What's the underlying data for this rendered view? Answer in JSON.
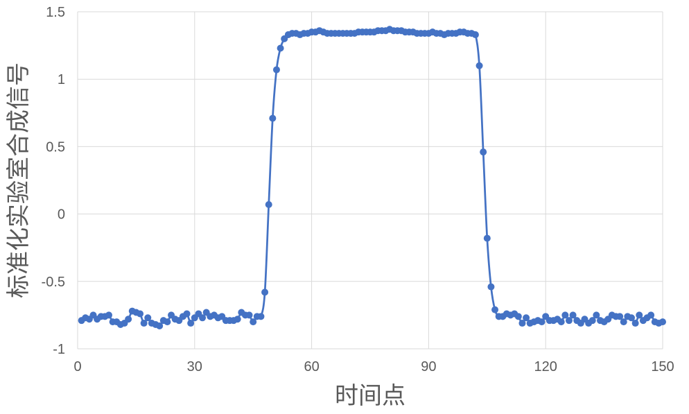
{
  "chart_data": {
    "type": "line",
    "title": "",
    "xlabel": "时间点",
    "ylabel": "标准化实验室合成信号",
    "xlim": [
      0,
      150
    ],
    "ylim": [
      -1,
      1.5
    ],
    "x_ticks": [
      "0",
      "30",
      "60",
      "90",
      "120",
      "150"
    ],
    "y_ticks": [
      "-1",
      "-0.5",
      "0",
      "0.5",
      "1",
      "1.5"
    ],
    "grid": "on",
    "legend": "none",
    "series": [
      {
        "color": "#4472c4",
        "markers": "circle",
        "smooth": true,
        "x": [
          1,
          2,
          3,
          4,
          5,
          6,
          7,
          8,
          9,
          10,
          11,
          12,
          13,
          14,
          15,
          16,
          17,
          18,
          19,
          20,
          21,
          22,
          23,
          24,
          25,
          26,
          27,
          28,
          29,
          30,
          31,
          32,
          33,
          34,
          35,
          36,
          37,
          38,
          39,
          40,
          41,
          42,
          43,
          44,
          45,
          46,
          47,
          48,
          49,
          50,
          51,
          52,
          53,
          54,
          55,
          56,
          57,
          58,
          59,
          60,
          61,
          62,
          63,
          64,
          65,
          66,
          67,
          68,
          69,
          70,
          71,
          72,
          73,
          74,
          75,
          76,
          77,
          78,
          79,
          80,
          81,
          82,
          83,
          84,
          85,
          86,
          87,
          88,
          89,
          90,
          91,
          92,
          93,
          94,
          95,
          96,
          97,
          98,
          99,
          100,
          101,
          102,
          103,
          104,
          105,
          106,
          107,
          108,
          109,
          110,
          111,
          112,
          113,
          114,
          115,
          116,
          117,
          118,
          119,
          120,
          121,
          122,
          123,
          124,
          125,
          126,
          127,
          128,
          129,
          130,
          131,
          132,
          133,
          134,
          135,
          136,
          137,
          138,
          139,
          140,
          141,
          142,
          143,
          144,
          145,
          146,
          147,
          148,
          149,
          150
        ],
        "y": [
          -0.79,
          -0.77,
          -0.78,
          -0.75,
          -0.78,
          -0.76,
          -0.76,
          -0.75,
          -0.8,
          -0.8,
          -0.82,
          -0.81,
          -0.78,
          -0.72,
          -0.73,
          -0.74,
          -0.81,
          -0.77,
          -0.81,
          -0.82,
          -0.83,
          -0.79,
          -0.8,
          -0.75,
          -0.78,
          -0.79,
          -0.76,
          -0.74,
          -0.81,
          -0.77,
          -0.74,
          -0.77,
          -0.73,
          -0.76,
          -0.75,
          -0.77,
          -0.76,
          -0.79,
          -0.79,
          -0.79,
          -0.78,
          -0.73,
          -0.75,
          -0.75,
          -0.8,
          -0.76,
          -0.76,
          -0.58,
          0.07,
          0.71,
          1.07,
          1.23,
          1.3,
          1.33,
          1.34,
          1.34,
          1.33,
          1.34,
          1.34,
          1.35,
          1.35,
          1.36,
          1.35,
          1.34,
          1.34,
          1.34,
          1.34,
          1.34,
          1.34,
          1.34,
          1.34,
          1.35,
          1.35,
          1.35,
          1.35,
          1.35,
          1.36,
          1.36,
          1.36,
          1.37,
          1.36,
          1.36,
          1.36,
          1.35,
          1.35,
          1.35,
          1.34,
          1.34,
          1.34,
          1.34,
          1.35,
          1.34,
          1.34,
          1.33,
          1.34,
          1.34,
          1.34,
          1.35,
          1.35,
          1.34,
          1.34,
          1.33,
          1.1,
          0.46,
          -0.18,
          -0.54,
          -0.71,
          -0.76,
          -0.76,
          -0.74,
          -0.75,
          -0.74,
          -0.76,
          -0.81,
          -0.77,
          -0.81,
          -0.8,
          -0.79,
          -0.8,
          -0.76,
          -0.79,
          -0.79,
          -0.78,
          -0.8,
          -0.75,
          -0.79,
          -0.75,
          -0.79,
          -0.81,
          -0.78,
          -0.81,
          -0.79,
          -0.75,
          -0.79,
          -0.8,
          -0.78,
          -0.75,
          -0.76,
          -0.76,
          -0.8,
          -0.76,
          -0.77,
          -0.81,
          -0.75,
          -0.79,
          -0.77,
          -0.75,
          -0.8,
          -0.81,
          -0.8
        ]
      }
    ]
  }
}
